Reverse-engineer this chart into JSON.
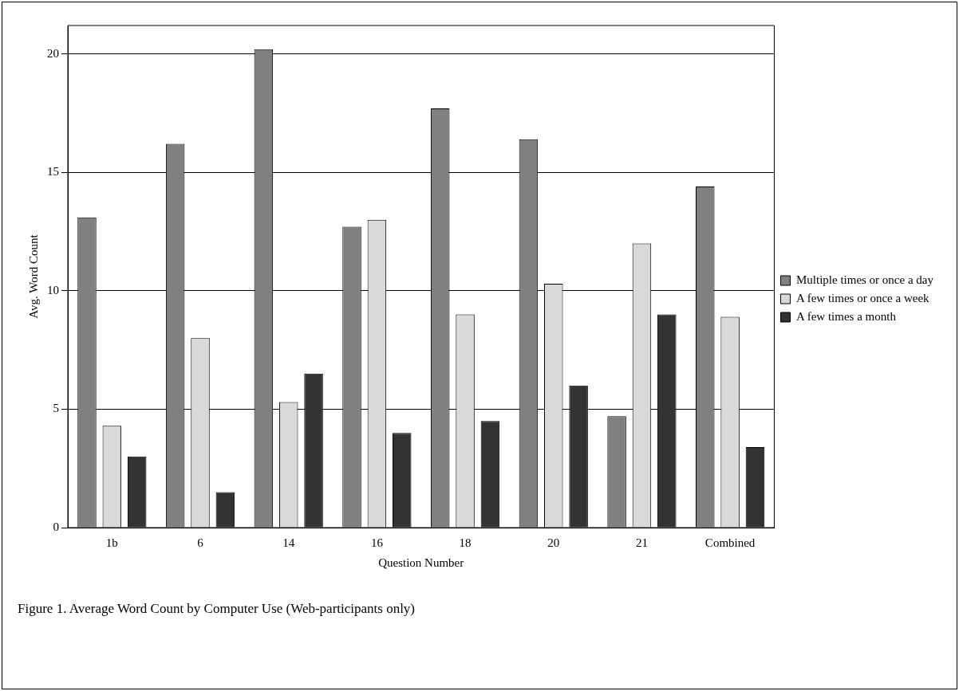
{
  "chart_data": {
    "type": "bar",
    "xlabel": "Question Number",
    "ylabel": "Avg. Word Count",
    "categories": [
      "1b",
      "6",
      "14",
      "16",
      "18",
      "20",
      "21",
      "Combined"
    ],
    "series": [
      {
        "name": "Multiple times or once a day",
        "color": "#808080",
        "values": [
          13.1,
          16.2,
          20.2,
          12.7,
          17.7,
          16.4,
          4.7,
          14.4
        ]
      },
      {
        "name": "A few times or once a week",
        "color": "#d9d9d9",
        "values": [
          4.3,
          8.0,
          5.3,
          13.0,
          9.0,
          10.3,
          12.0,
          8.9
        ]
      },
      {
        "name": "A few times a month",
        "color": "#333333",
        "values": [
          3.0,
          1.5,
          6.5,
          4.0,
          4.5,
          6.0,
          9.0,
          3.4
        ]
      }
    ],
    "ylim": [
      0,
      21.2
    ],
    "yticks": [
      0,
      5,
      10,
      15,
      20
    ],
    "grid": "y",
    "legend": "right",
    "annotations": [
      "Figure 1. Average Word Count by Computer Use (Web-participants only)"
    ]
  }
}
